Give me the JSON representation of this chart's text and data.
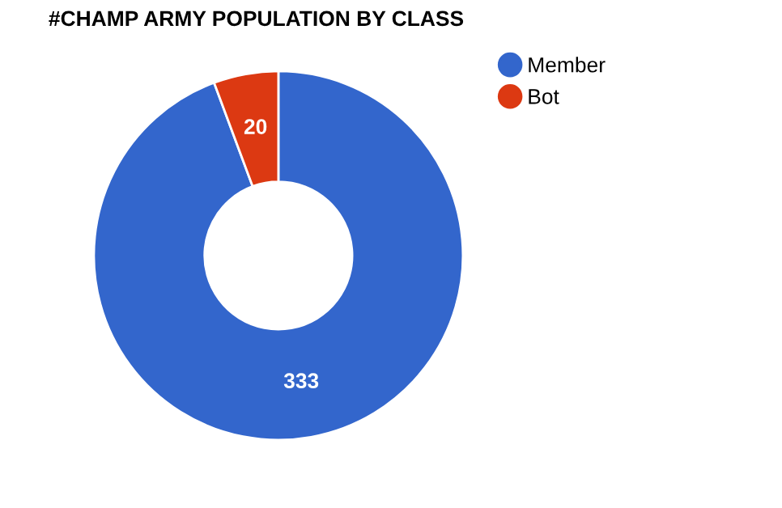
{
  "chart_data": {
    "type": "donut",
    "title": "#CHAMP ARMY POPULATION BY CLASS",
    "categories": [
      "Member",
      "Bot"
    ],
    "values": [
      333,
      20
    ],
    "colors": [
      "#3366cc",
      "#dc3912"
    ],
    "data_labels": true,
    "legend": "right"
  }
}
